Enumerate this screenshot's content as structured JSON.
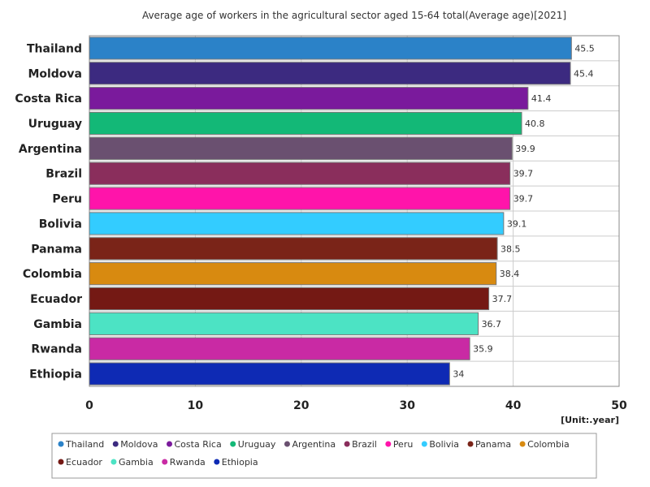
{
  "chart_data": {
    "type": "bar",
    "orientation": "horizontal",
    "title": "Average age of workers in the agricultural sector aged 15-64 total(Average age)[2021]",
    "unit": "[Unit:.year]",
    "xlim": [
      0,
      50
    ],
    "x_ticks": [
      0,
      10,
      20,
      30,
      40,
      50
    ],
    "grid": true,
    "legend_position": "bottom",
    "categories": [
      "Thailand",
      "Moldova",
      "Costa Rica",
      "Uruguay",
      "Argentina",
      "Brazil",
      "Peru",
      "Bolivia",
      "Panama",
      "Colombia",
      "Ecuador",
      "Gambia",
      "Rwanda",
      "Ethiopia"
    ],
    "values": [
      45.5,
      45.4,
      41.4,
      40.8,
      39.9,
      39.7,
      39.7,
      39.1,
      38.5,
      38.4,
      37.7,
      36.7,
      35.9,
      34
    ],
    "value_labels": [
      "45.5",
      "45.4",
      "41.4",
      "40.8",
      "39.9",
      "39.7",
      "39.7",
      "39.1",
      "38.5",
      "38.4",
      "37.7",
      "36.7",
      "35.9",
      "34"
    ],
    "colors": [
      "#2b82c8",
      "#3c2a80",
      "#7a1a9c",
      "#13b877",
      "#6a5070",
      "#8a2e5c",
      "#ff14aa",
      "#33ccff",
      "#7a2418",
      "#d88a10",
      "#741914",
      "#4ce3c4",
      "#c92aa4",
      "#0e2ab4"
    ]
  }
}
